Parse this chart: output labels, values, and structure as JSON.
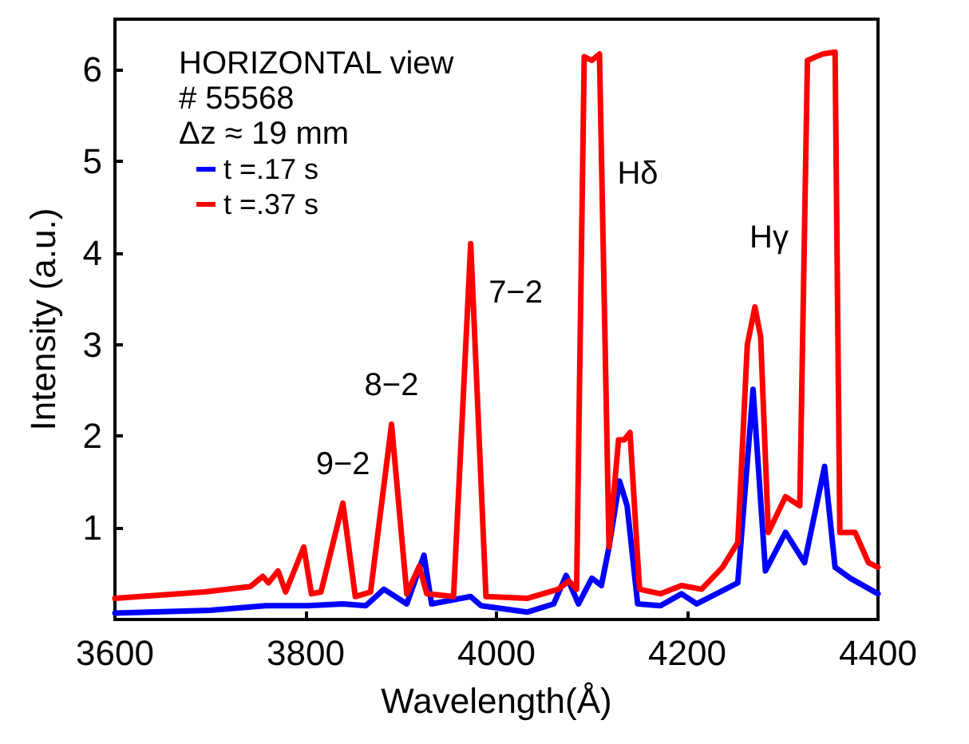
{
  "chart_data": {
    "type": "line",
    "xlabel": "Wavelength(Å)",
    "ylabel": "Intensity (a.u.)",
    "xlim": [
      3600,
      4400
    ],
    "xticks": [
      3600,
      3800,
      4000,
      4200,
      4400
    ],
    "ylim": [
      0,
      6.55
    ],
    "yticks": [
      1,
      2,
      3,
      4,
      5,
      6
    ],
    "grid": false,
    "legend": "top left",
    "marker": "none",
    "line_style": "solid",
    "annotations": [
      "HORIZONTAL view",
      "# 55568",
      "Δz ≈ 19 mm",
      {
        "text": "9−2",
        "x": 3839,
        "y": 1.27
      },
      {
        "text": "8−2",
        "x": 3890,
        "y": 2.13
      },
      {
        "text": "7−2",
        "x": 3975,
        "y": 3.7
      },
      {
        "text": "Hδ",
        "x": 4110,
        "y": 5.0
      },
      {
        "text": "Hγ",
        "x": 4323,
        "y": 4.3
      }
    ],
    "series": [
      {
        "name": "t =.17 s",
        "color": "#0000ff",
        "x": [
          3600,
          3700,
          3758,
          3802,
          3839,
          3863,
          3882,
          3906,
          3924,
          3932,
          3973,
          3984,
          4032,
          4060,
          4073,
          4086,
          4100,
          4110,
          4118,
          4129,
          4137,
          4148,
          4172,
          4194,
          4210,
          4253,
          4269,
          4282,
          4303,
          4323,
          4344,
          4355,
          4371,
          4400
        ],
        "values": [
          0.07,
          0.1,
          0.15,
          0.15,
          0.17,
          0.15,
          0.33,
          0.17,
          0.7,
          0.17,
          0.25,
          0.15,
          0.08,
          0.17,
          0.48,
          0.17,
          0.45,
          0.37,
          0.79,
          1.51,
          1.24,
          0.17,
          0.15,
          0.28,
          0.17,
          0.4,
          2.51,
          0.53,
          0.95,
          0.62,
          1.67,
          0.57,
          0.45,
          0.28
        ]
      },
      {
        "name": "t =.37 s",
        "color": "#ff0000",
        "x": [
          3600,
          3694,
          3742,
          3755,
          3761,
          3771,
          3779,
          3798,
          3806,
          3816,
          3839,
          3852,
          3868,
          3890,
          3906,
          3919,
          3927,
          3955,
          3973,
          3989,
          4032,
          4065,
          4076,
          4084,
          4092,
          4100,
          4108,
          4118,
          4128,
          4134,
          4140,
          4150,
          4172,
          4194,
          4215,
          4237,
          4253,
          4263,
          4271,
          4277,
          4285,
          4303,
          4318,
          4326,
          4342,
          4355,
          4360,
          4376,
          4390,
          4400
        ],
        "values": [
          0.23,
          0.3,
          0.36,
          0.47,
          0.4,
          0.53,
          0.3,
          0.79,
          0.28,
          0.3,
          1.27,
          0.25,
          0.3,
          2.13,
          0.28,
          0.58,
          0.28,
          0.25,
          4.1,
          0.25,
          0.23,
          0.33,
          0.42,
          0.33,
          6.14,
          6.1,
          6.17,
          0.79,
          1.96,
          1.96,
          2.04,
          0.33,
          0.28,
          0.37,
          0.33,
          0.57,
          0.84,
          3.0,
          3.41,
          3.08,
          0.95,
          1.34,
          1.24,
          6.1,
          6.17,
          6.19,
          0.95,
          0.95,
          0.62,
          0.57
        ]
      }
    ]
  }
}
